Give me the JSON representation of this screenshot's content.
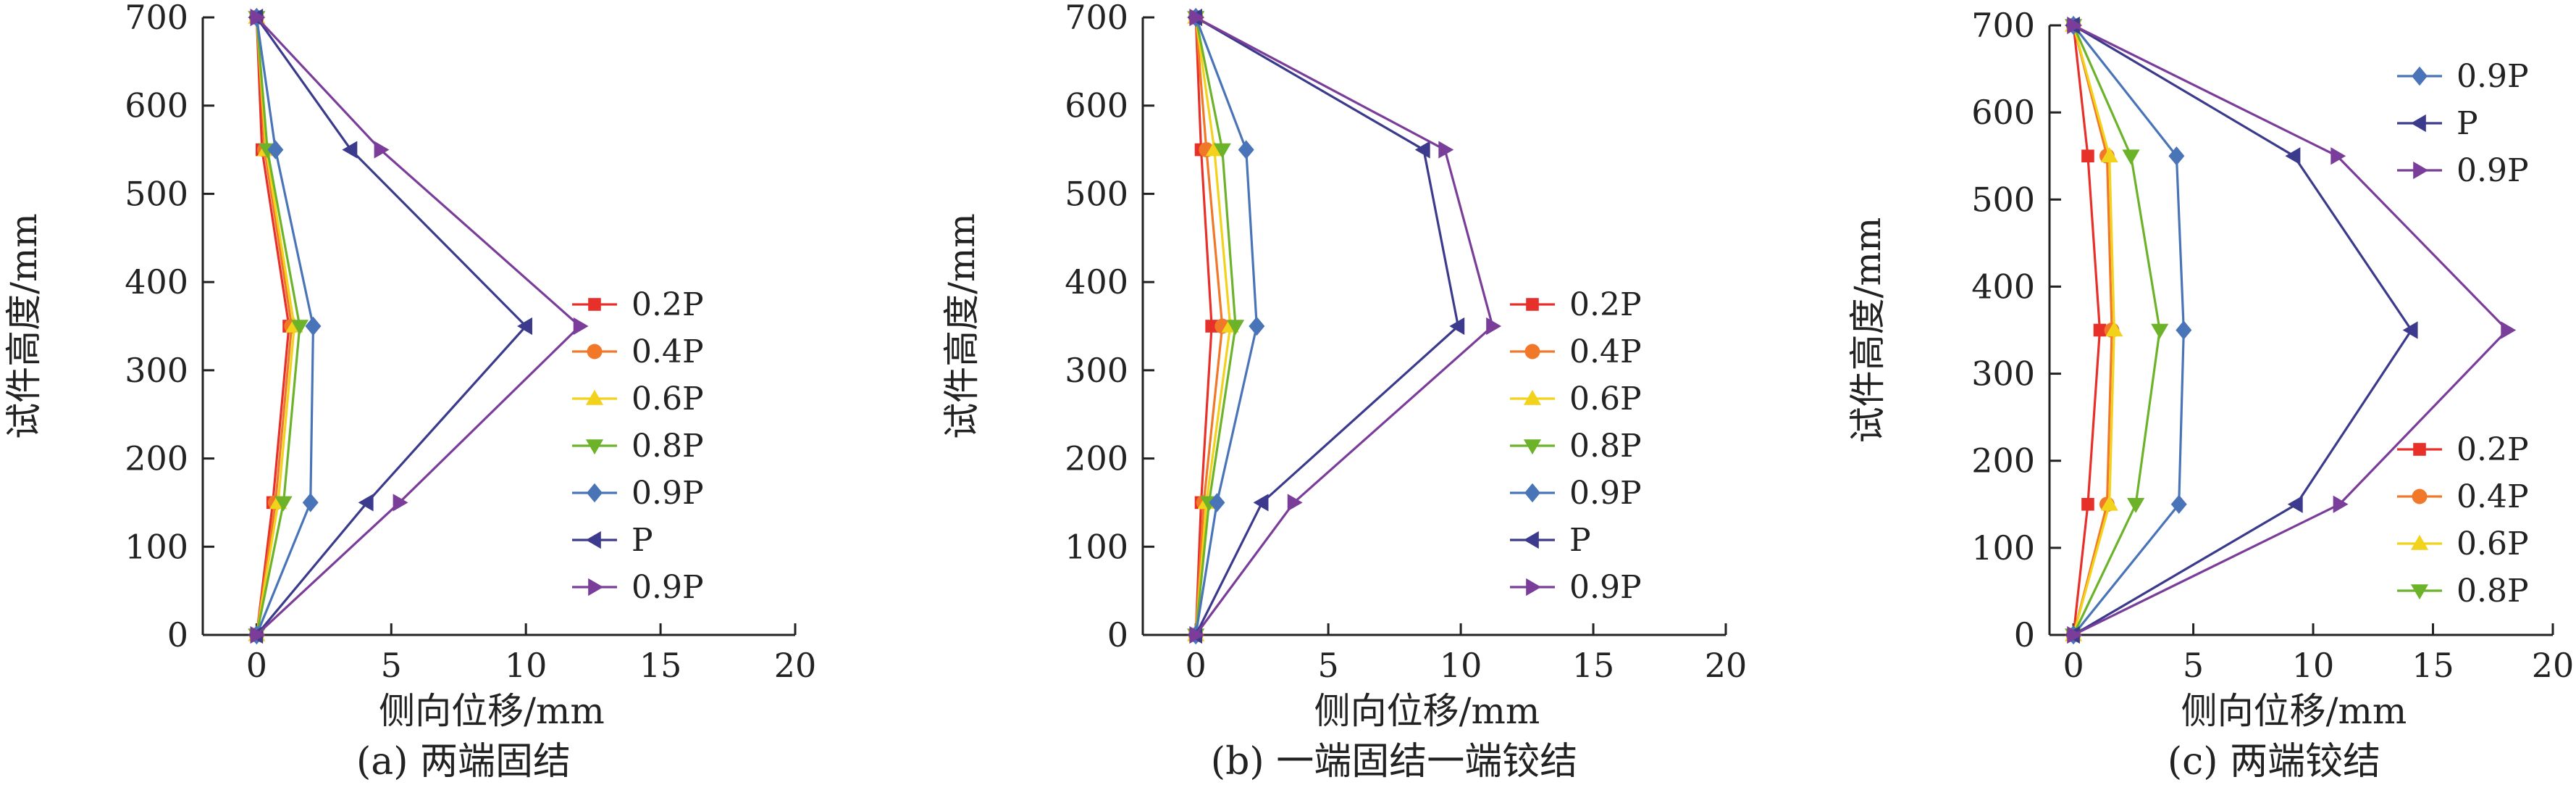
{
  "chart_data": [
    {
      "type": "line",
      "caption": "(a) 两端固结",
      "xlabel": "侧向位移/mm",
      "ylabel": "试件高度/mm",
      "xlim": [
        -2,
        20
      ],
      "ylim": [
        0,
        700
      ],
      "xticks": [
        "0",
        "5",
        "10",
        "15",
        "20"
      ],
      "yticks": [
        "0",
        "100",
        "200",
        "300",
        "400",
        "500",
        "600",
        "700"
      ],
      "legend_position": "right",
      "legend_order": [
        0,
        1,
        2,
        3,
        4,
        5,
        6
      ],
      "series": [
        {
          "name": "0.2P",
          "color": "#e8302a",
          "marker": "square",
          "points": [
            [
              0,
              0
            ],
            [
              0.6,
              150
            ],
            [
              1.2,
              350
            ],
            [
              0.2,
              550
            ],
            [
              0,
              700
            ]
          ]
        },
        {
          "name": "0.4P",
          "color": "#f07828",
          "marker": "circle",
          "points": [
            [
              0,
              0
            ],
            [
              0.7,
              150
            ],
            [
              1.3,
              350
            ],
            [
              0.3,
              550
            ],
            [
              0,
              700
            ]
          ]
        },
        {
          "name": "0.6P",
          "color": "#f2d21a",
          "marker": "triangle-up",
          "points": [
            [
              0,
              0
            ],
            [
              0.8,
              150
            ],
            [
              1.4,
              350
            ],
            [
              0.35,
              550
            ],
            [
              0,
              700
            ]
          ]
        },
        {
          "name": "0.8P",
          "color": "#6cb32a",
          "marker": "triangle-down",
          "points": [
            [
              0,
              0
            ],
            [
              1.0,
              150
            ],
            [
              1.6,
              350
            ],
            [
              0.4,
              550
            ],
            [
              0,
              700
            ]
          ]
        },
        {
          "name": "0.9P",
          "color": "#4a74b8",
          "marker": "diamond",
          "points": [
            [
              0,
              0
            ],
            [
              2.0,
              150
            ],
            [
              2.1,
              350
            ],
            [
              0.7,
              550
            ],
            [
              0,
              700
            ]
          ]
        },
        {
          "name": "P",
          "color": "#3b3a8c",
          "marker": "triangle-left",
          "points": [
            [
              0,
              0
            ],
            [
              4.1,
              150
            ],
            [
              10.0,
              350
            ],
            [
              3.5,
              550
            ],
            [
              0,
              700
            ]
          ]
        },
        {
          "name": "0.9P",
          "color": "#7a3d99",
          "marker": "triangle-right",
          "points": [
            [
              0,
              0
            ],
            [
              5.3,
              150
            ],
            [
              12.0,
              350
            ],
            [
              4.6,
              550
            ],
            [
              0,
              700
            ]
          ]
        }
      ]
    },
    {
      "type": "line",
      "caption": "(b) 一端固结一端铰结",
      "xlabel": "侧向位移/mm",
      "ylabel": "试件高度/mm",
      "xlim": [
        -2,
        20
      ],
      "ylim": [
        0,
        700
      ],
      "xticks": [
        "0",
        "5",
        "10",
        "15",
        "20"
      ],
      "yticks": [
        "0",
        "100",
        "200",
        "300",
        "400",
        "500",
        "600",
        "700"
      ],
      "legend_position": "right",
      "legend_order": [
        0,
        1,
        2,
        3,
        4,
        5,
        6
      ],
      "series": [
        {
          "name": "0.2P",
          "color": "#e8302a",
          "marker": "square",
          "points": [
            [
              0,
              0
            ],
            [
              0.2,
              150
            ],
            [
              0.6,
              350
            ],
            [
              0.2,
              550
            ],
            [
              0,
              700
            ]
          ]
        },
        {
          "name": "0.4P",
          "color": "#f07828",
          "marker": "circle",
          "points": [
            [
              0,
              0
            ],
            [
              0.3,
              150
            ],
            [
              1.0,
              350
            ],
            [
              0.4,
              550
            ],
            [
              0,
              700
            ]
          ]
        },
        {
          "name": "0.6P",
          "color": "#f2d21a",
          "marker": "triangle-up",
          "points": [
            [
              0,
              0
            ],
            [
              0.4,
              150
            ],
            [
              1.3,
              350
            ],
            [
              0.7,
              550
            ],
            [
              0,
              700
            ]
          ]
        },
        {
          "name": "0.8P",
          "color": "#6cb32a",
          "marker": "triangle-down",
          "points": [
            [
              0,
              0
            ],
            [
              0.5,
              150
            ],
            [
              1.5,
              350
            ],
            [
              1.0,
              550
            ],
            [
              0,
              700
            ]
          ]
        },
        {
          "name": "0.9P",
          "color": "#4a74b8",
          "marker": "diamond",
          "points": [
            [
              0,
              0
            ],
            [
              0.8,
              150
            ],
            [
              2.3,
              350
            ],
            [
              1.9,
              550
            ],
            [
              0,
              700
            ]
          ]
        },
        {
          "name": "P",
          "color": "#3b3a8c",
          "marker": "triangle-left",
          "points": [
            [
              0,
              0
            ],
            [
              2.5,
              150
            ],
            [
              9.9,
              350
            ],
            [
              8.6,
              550
            ],
            [
              0,
              700
            ]
          ]
        },
        {
          "name": "0.9P",
          "color": "#7a3d99",
          "marker": "triangle-right",
          "points": [
            [
              0,
              0
            ],
            [
              3.7,
              150
            ],
            [
              11.2,
              350
            ],
            [
              9.4,
              550
            ],
            [
              0,
              700
            ]
          ]
        }
      ]
    },
    {
      "type": "line",
      "caption": "(c) 两端铰结",
      "xlabel": "侧向位移/mm",
      "ylabel": "试件高度/mm",
      "xlim": [
        -1,
        20
      ],
      "ylim": [
        0,
        700
      ],
      "xticks": [
        "0",
        "5",
        "10",
        "15",
        "20"
      ],
      "yticks": [
        "0",
        "100",
        "200",
        "300",
        "400",
        "500",
        "600",
        "700"
      ],
      "legend_position": "split: 0.9P / P / 0.9P top-right, 0.2P–0.8P bottom-right",
      "legend_groups": [
        [
          4,
          5,
          6
        ],
        [
          0,
          1,
          2,
          3
        ]
      ],
      "series": [
        {
          "name": "0.2P",
          "color": "#e8302a",
          "marker": "square",
          "points": [
            [
              0,
              0
            ],
            [
              0.6,
              150
            ],
            [
              1.1,
              350
            ],
            [
              0.6,
              550
            ],
            [
              0,
              700
            ]
          ]
        },
        {
          "name": "0.4P",
          "color": "#f07828",
          "marker": "circle",
          "points": [
            [
              0,
              0
            ],
            [
              1.4,
              150
            ],
            [
              1.6,
              350
            ],
            [
              1.4,
              550
            ],
            [
              0,
              700
            ]
          ]
        },
        {
          "name": "0.6P",
          "color": "#f2d21a",
          "marker": "triangle-up",
          "points": [
            [
              0,
              0
            ],
            [
              1.5,
              150
            ],
            [
              1.7,
              350
            ],
            [
              1.5,
              550
            ],
            [
              0,
              700
            ]
          ]
        },
        {
          "name": "0.8P",
          "color": "#6cb32a",
          "marker": "triangle-down",
          "points": [
            [
              0,
              0
            ],
            [
              2.6,
              150
            ],
            [
              3.6,
              350
            ],
            [
              2.4,
              550
            ],
            [
              0,
              700
            ]
          ]
        },
        {
          "name": "0.9P",
          "color": "#4a74b8",
          "marker": "diamond",
          "points": [
            [
              0,
              0
            ],
            [
              4.4,
              150
            ],
            [
              4.6,
              350
            ],
            [
              4.3,
              550
            ],
            [
              0,
              700
            ]
          ]
        },
        {
          "name": "P",
          "color": "#3b3a8c",
          "marker": "triangle-left",
          "points": [
            [
              0,
              0
            ],
            [
              9.3,
              150
            ],
            [
              14.1,
              350
            ],
            [
              9.2,
              550
            ],
            [
              0,
              700
            ]
          ]
        },
        {
          "name": "0.9P",
          "color": "#7a3d99",
          "marker": "triangle-right",
          "points": [
            [
              0,
              0
            ],
            [
              11.1,
              150
            ],
            [
              18.1,
              350
            ],
            [
              11.0,
              550
            ],
            [
              0,
              700
            ]
          ]
        }
      ]
    }
  ]
}
